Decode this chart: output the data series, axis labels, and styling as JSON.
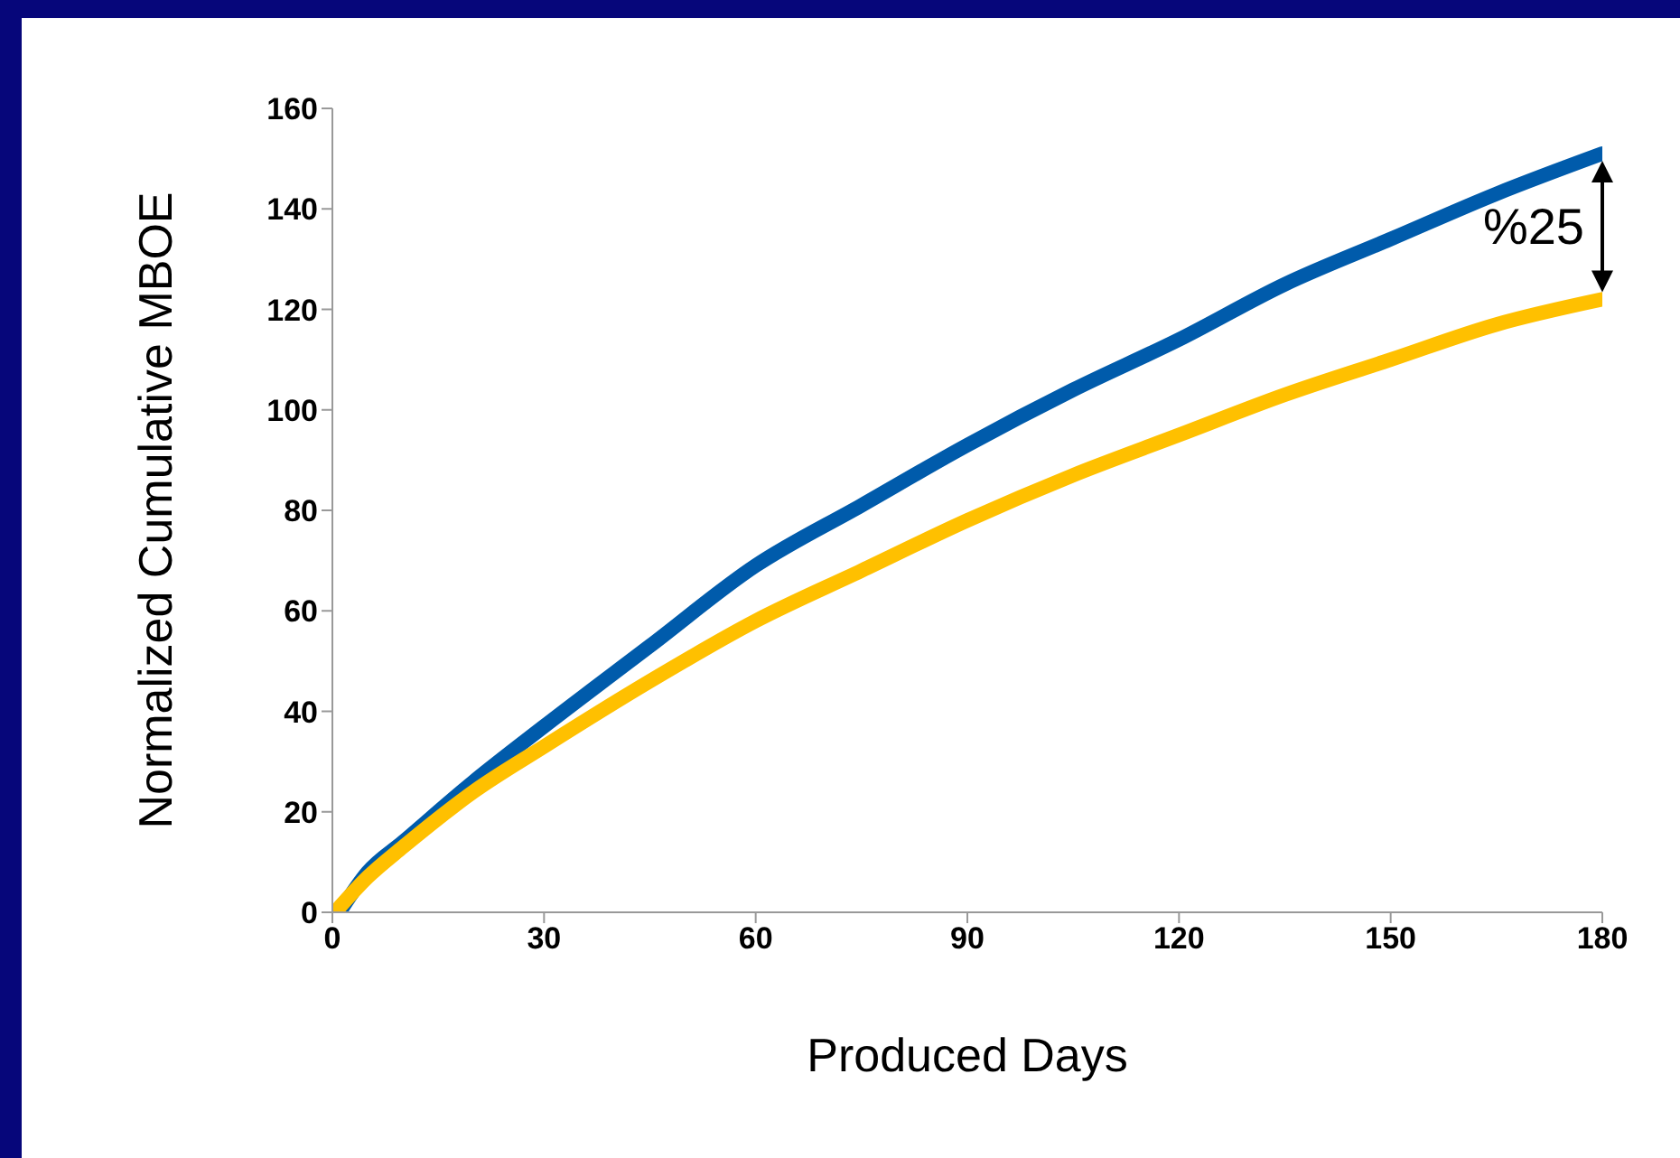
{
  "chart_data": {
    "type": "line",
    "xlabel": "Produced Days",
    "ylabel": "Normalized Cumulative MBOE",
    "x": [
      1,
      5,
      10,
      20,
      30,
      45,
      60,
      75,
      90,
      105,
      120,
      135,
      150,
      165,
      180
    ],
    "series": [
      {
        "color": "#005bab",
        "values": [
          0,
          8,
          14,
          26,
          37,
          53,
          69,
          81,
          93,
          104,
          114,
          125,
          134,
          143,
          151
        ]
      },
      {
        "color": "#ffc000",
        "values": [
          1,
          7,
          13,
          24,
          33,
          46,
          58,
          68,
          78,
          87,
          95,
          103,
          110,
          117,
          122
        ]
      }
    ],
    "xlim": [
      0,
      180
    ],
    "xticks": [
      0,
      30,
      60,
      90,
      120,
      150,
      180
    ],
    "ylim": [
      0,
      160
    ],
    "yticks": [
      0,
      20,
      40,
      60,
      80,
      100,
      120,
      140,
      160
    ],
    "grid": false,
    "legend": false,
    "marker": "none",
    "line_style": "solid",
    "annotations": [
      "%25"
    ]
  }
}
